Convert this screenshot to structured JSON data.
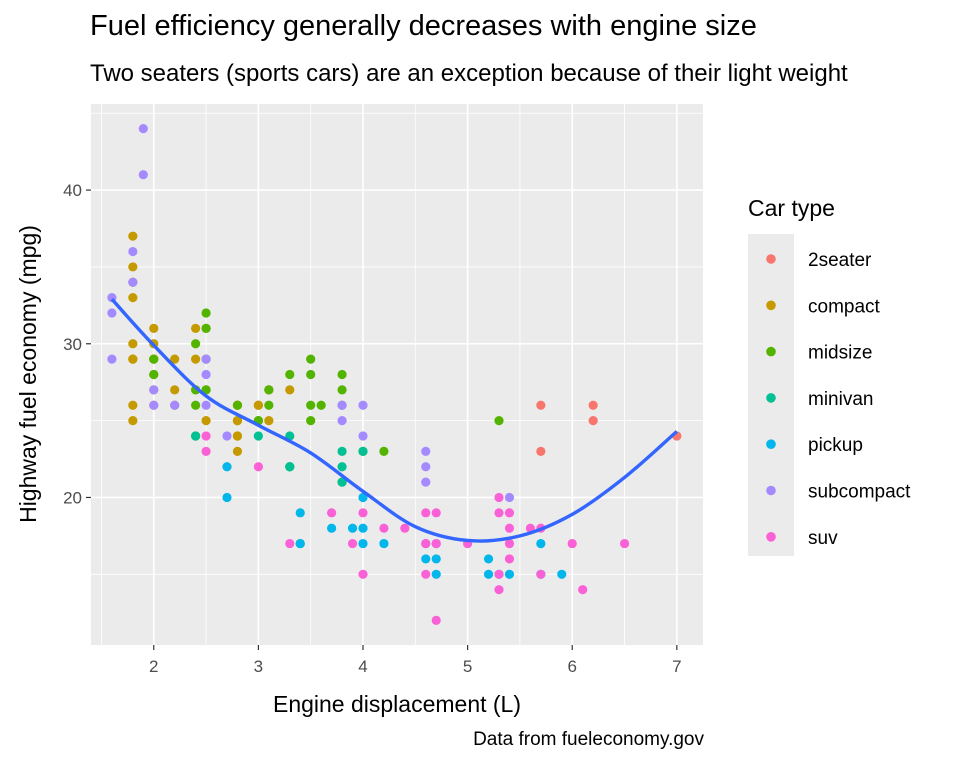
{
  "chart_data": {
    "type": "scatter",
    "title": "Fuel efficiency generally decreases with engine size",
    "subtitle": "Two seaters (sports cars) are an exception because of their light weight",
    "caption": "Data from fueleconomy.gov",
    "xlabel": "Engine displacement (L)",
    "ylabel": "Highway fuel economy (mpg)",
    "xlim": [
      1.4,
      7.25
    ],
    "ylim": [
      10.4,
      45.6
    ],
    "x_ticks": [
      2,
      3,
      4,
      5,
      6,
      7
    ],
    "y_ticks": [
      20,
      30,
      40
    ],
    "grid": true,
    "legend_title": "Car type",
    "legend_position": "right",
    "series": [
      {
        "name": "2seater",
        "color": "#F8766D",
        "points": [
          [
            5.7,
            26
          ],
          [
            5.7,
            23
          ],
          [
            6.2,
            26
          ],
          [
            6.2,
            25
          ],
          [
            7.0,
            24
          ]
        ]
      },
      {
        "name": "compact",
        "color": "#C49A00",
        "points": [
          [
            1.8,
            29
          ],
          [
            1.8,
            29
          ],
          [
            2.0,
            31
          ],
          [
            2.0,
            30
          ],
          [
            2.8,
            26
          ],
          [
            2.8,
            26
          ],
          [
            3.1,
            27
          ],
          [
            1.8,
            26
          ],
          [
            1.8,
            25
          ],
          [
            2.0,
            28
          ],
          [
            2.0,
            29
          ],
          [
            2.8,
            25
          ],
          [
            2.8,
            25
          ],
          [
            3.1,
            25
          ],
          [
            1.8,
            37
          ],
          [
            1.8,
            35
          ],
          [
            2.0,
            29
          ],
          [
            2.0,
            26
          ],
          [
            2.8,
            26
          ],
          [
            2.8,
            24
          ],
          [
            3.1,
            27
          ],
          [
            3.3,
            27
          ],
          [
            2.2,
            26
          ],
          [
            2.2,
            27
          ],
          [
            2.4,
            31
          ],
          [
            2.4,
            29
          ],
          [
            3.0,
            26
          ],
          [
            3.0,
            26
          ],
          [
            1.8,
            33
          ],
          [
            1.8,
            30
          ],
          [
            2.0,
            27
          ],
          [
            2.5,
            25
          ],
          [
            2.5,
            27
          ],
          [
            2.8,
            23
          ],
          [
            2.4,
            27
          ],
          [
            2.2,
            29
          ],
          [
            2.5,
            31
          ],
          [
            1.8,
            34
          ],
          [
            2.8,
            24
          ]
        ]
      },
      {
        "name": "midsize",
        "color": "#53B400",
        "points": [
          [
            2.4,
            30
          ],
          [
            3.1,
            26
          ],
          [
            3.5,
            29
          ],
          [
            3.6,
            26
          ],
          [
            3.0,
            25
          ],
          [
            3.3,
            28
          ],
          [
            3.8,
            27
          ],
          [
            4.0,
            23
          ],
          [
            3.8,
            26
          ],
          [
            2.0,
            29
          ],
          [
            2.0,
            28
          ],
          [
            2.5,
            32
          ],
          [
            2.5,
            31
          ],
          [
            2.8,
            26
          ],
          [
            3.5,
            26
          ],
          [
            2.4,
            27
          ],
          [
            2.4,
            26
          ],
          [
            3.5,
            25
          ],
          [
            3.5,
            28
          ],
          [
            3.8,
            28
          ],
          [
            4.2,
            23
          ],
          [
            5.3,
            25
          ],
          [
            2.5,
            29
          ],
          [
            2.5,
            27
          ],
          [
            3.1,
            27
          ],
          [
            3.8,
            21
          ],
          [
            3.3,
            22
          ],
          [
            3.0,
            25
          ],
          [
            2.4,
            24
          ]
        ]
      },
      {
        "name": "minivan",
        "color": "#00C094",
        "points": [
          [
            2.4,
            24
          ],
          [
            3.0,
            24
          ],
          [
            3.3,
            22
          ],
          [
            3.3,
            24
          ],
          [
            3.8,
            22
          ],
          [
            3.8,
            23
          ],
          [
            4.0,
            23
          ],
          [
            3.3,
            22
          ],
          [
            3.4,
            17
          ],
          [
            3.8,
            21
          ]
        ]
      },
      {
        "name": "pickup",
        "color": "#00B6EB",
        "points": [
          [
            2.7,
            20
          ],
          [
            2.7,
            22
          ],
          [
            3.4,
            19
          ],
          [
            3.4,
            17
          ],
          [
            4.0,
            20
          ],
          [
            4.0,
            18
          ],
          [
            4.0,
            17
          ],
          [
            4.2,
            17
          ],
          [
            4.6,
            17
          ],
          [
            4.6,
            16
          ],
          [
            4.7,
            17
          ],
          [
            4.7,
            16
          ],
          [
            5.2,
            16
          ],
          [
            5.2,
            15
          ],
          [
            5.3,
            15
          ],
          [
            5.7,
            17
          ],
          [
            5.9,
            15
          ],
          [
            3.7,
            18
          ],
          [
            3.9,
            18
          ],
          [
            4.7,
            15
          ],
          [
            5.4,
            15
          ],
          [
            5.7,
            15
          ]
        ]
      },
      {
        "name": "subcompact",
        "color": "#A58AFF",
        "points": [
          [
            1.6,
            33
          ],
          [
            1.6,
            32
          ],
          [
            1.6,
            29
          ],
          [
            1.8,
            36
          ],
          [
            1.8,
            34
          ],
          [
            1.9,
            44
          ],
          [
            1.9,
            41
          ],
          [
            2.0,
            27
          ],
          [
            2.0,
            26
          ],
          [
            2.2,
            26
          ],
          [
            2.5,
            29
          ],
          [
            2.5,
            28
          ],
          [
            2.5,
            26
          ],
          [
            2.7,
            24
          ],
          [
            3.8,
            26
          ],
          [
            3.8,
            25
          ],
          [
            4.0,
            26
          ],
          [
            4.0,
            24
          ],
          [
            4.6,
            23
          ],
          [
            4.6,
            22
          ],
          [
            4.6,
            21
          ],
          [
            5.4,
            20
          ]
        ]
      },
      {
        "name": "suv",
        "color": "#FB61D7",
        "points": [
          [
            2.5,
            24
          ],
          [
            2.5,
            23
          ],
          [
            3.0,
            22
          ],
          [
            3.3,
            17
          ],
          [
            3.7,
            19
          ],
          [
            3.9,
            17
          ],
          [
            4.0,
            19
          ],
          [
            4.0,
            15
          ],
          [
            4.2,
            18
          ],
          [
            4.4,
            18
          ],
          [
            4.6,
            19
          ],
          [
            4.6,
            17
          ],
          [
            4.6,
            15
          ],
          [
            4.7,
            19
          ],
          [
            4.7,
            17
          ],
          [
            4.7,
            12
          ],
          [
            5.0,
            17
          ],
          [
            5.3,
            20
          ],
          [
            5.3,
            19
          ],
          [
            5.3,
            14
          ],
          [
            5.4,
            17
          ],
          [
            5.4,
            18
          ],
          [
            5.4,
            16
          ],
          [
            5.4,
            19
          ],
          [
            5.6,
            18
          ],
          [
            5.7,
            18
          ],
          [
            5.7,
            15
          ],
          [
            6.0,
            17
          ],
          [
            6.1,
            14
          ],
          [
            6.5,
            17
          ],
          [
            5.3,
            15
          ]
        ]
      }
    ],
    "smooth_line": {
      "type": "loess",
      "color": "#3366FF",
      "points": [
        [
          1.6,
          32.9
        ],
        [
          2.0,
          29.9
        ],
        [
          2.5,
          26.6
        ],
        [
          3.0,
          24.7
        ],
        [
          3.5,
          22.9
        ],
        [
          4.0,
          20.4
        ],
        [
          4.5,
          18.1
        ],
        [
          5.0,
          17.2
        ],
        [
          5.5,
          17.5
        ],
        [
          6.0,
          18.9
        ],
        [
          6.5,
          21.3
        ],
        [
          7.0,
          24.3
        ]
      ]
    }
  }
}
